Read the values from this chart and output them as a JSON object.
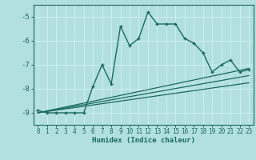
{
  "xlabel": "Humidex (Indice chaleur)",
  "bg_color": "#b2dfdf",
  "line_color": "#1a6b5e",
  "grid_color": "#d0eeee",
  "xlim": [
    -0.5,
    23.5
  ],
  "ylim": [
    -9.5,
    -4.5
  ],
  "yticks": [
    -9,
    -8,
    -7,
    -6,
    -5
  ],
  "xticks": [
    0,
    1,
    2,
    3,
    4,
    5,
    6,
    7,
    8,
    9,
    10,
    11,
    12,
    13,
    14,
    15,
    16,
    17,
    18,
    19,
    20,
    21,
    22,
    23
  ],
  "curve1_x": [
    0,
    1,
    2,
    3,
    4,
    5,
    6,
    7,
    8,
    9,
    10,
    11,
    12,
    13,
    14,
    15,
    16,
    17,
    18,
    19,
    20,
    21,
    22,
    23
  ],
  "curve1_y": [
    -8.9,
    -9.0,
    -9.0,
    -9.0,
    -9.0,
    -9.0,
    -7.9,
    -7.0,
    -7.8,
    -5.4,
    -6.2,
    -5.9,
    -4.8,
    -5.3,
    -5.3,
    -5.3,
    -5.9,
    -6.1,
    -6.5,
    -7.3,
    -7.0,
    -6.8,
    -7.3,
    -7.2
  ],
  "line1_x": [
    0,
    23
  ],
  "line1_y": [
    -9.0,
    -7.15
  ],
  "line2_x": [
    0,
    23
  ],
  "line2_y": [
    -9.0,
    -7.45
  ],
  "line3_x": [
    0,
    23
  ],
  "line3_y": [
    -9.0,
    -7.75
  ]
}
